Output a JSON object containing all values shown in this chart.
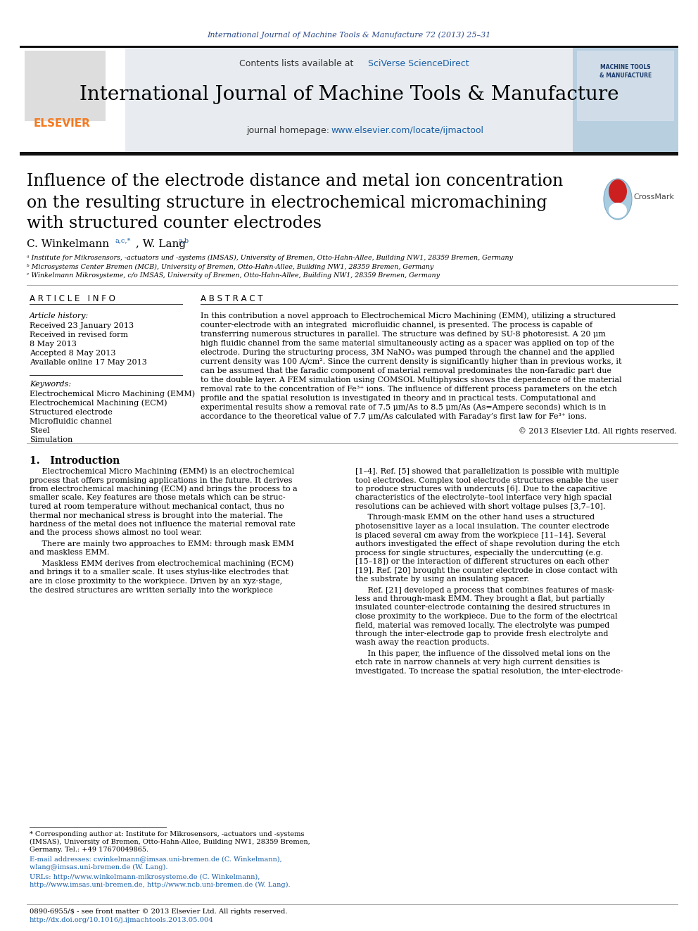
{
  "journal_ref": "International Journal of Machine Tools & Manufacture 72 (2013) 25–31",
  "journal_name": "International Journal of Machine Tools & Manufacture",
  "contents_text": "Contents lists available at ",
  "sciverse_text": "SciVerse ScienceDirect",
  "homepage_text": "journal homepage: ",
  "homepage_url": "www.elsevier.com/locate/ijmactool",
  "paper_title_line1": "Influence of the electrode distance and metal ion concentration",
  "paper_title_line2": "on the resulting structure in electrochemical micromachining",
  "paper_title_line3": "with structured counter electrodes",
  "authors_super1": "a,c,*",
  "authors_super2": "a,b",
  "affil_a": "ᵃ Institute for Mikrosensors, -actuators und -systems (IMSAS), University of Bremen, Otto-Hahn-Allee, Building NW1, 28359 Bremen, Germany",
  "affil_b": "ᵇ Microsystems Center Bremen (MCB), University of Bremen, Otto-Hahn-Allee, Building NW1, 28359 Bremen, Germany",
  "affil_c": "ᶜ Winkelmann Mikrosysteme, c/o IMSAS, University of Bremen, Otto-Hahn-Allee, Building NW1, 28359 Bremen, Germany",
  "article_info_header": "A R T I C L E   I N F O",
  "abstract_header": "A B S T R A C T",
  "article_history_label": "Article history:",
  "received_1": "Received 23 January 2013",
  "received_revised": "Received in revised form",
  "revised_date": "8 May 2013",
  "accepted": "Accepted 8 May 2013",
  "available": "Available online 17 May 2013",
  "keywords_label": "Keywords:",
  "keyword1": "Electrochemical Micro Machining (EMM)",
  "keyword2": "Electrochemical Machining (ECM)",
  "keyword3": "Structured electrode",
  "keyword4": "Microfluidic channel",
  "keyword5": "Steel",
  "keyword6": "Simulation",
  "copyright_text": "© 2013 Elsevier Ltd. All rights reserved.",
  "intro_header": "1.   Introduction",
  "footnote_line1a": "* Corresponding author at: Institute for Mikrosensors, -actuators und -systems",
  "footnote_line1b": "(IMSAS), University of Bremen, Otto-Hahn-Allee, Building NW1, 28359 Bremen,",
  "footnote_line1c": "Germany. Tel.: +49 17670049865.",
  "footnote_line2a": "E-mail addresses: cwinkelmann@imsas.uni-bremen.de (C. Winkelmann),",
  "footnote_line2b": "wlang@imsas.uni-bremen.de (W. Lang).",
  "footnote_line3a": "URLs: http://www.winkelmann-mikrosysteme.de (C. Winkelmann),",
  "footnote_line3b": "http://www.imsas.uni-bremen.de, http://www.ncb.uni-bremen.de (W. Lang).",
  "footer_issn": "0890-6955/$ - see front matter © 2013 Elsevier Ltd. All rights reserved.",
  "footer_doi": "http://dx.doi.org/10.1016/j.ijmachtools.2013.05.004",
  "journal_color": "#2b4a8b",
  "link_color": "#1a5fa8",
  "gray_bg": "#e8ecf0",
  "abstract_lines": [
    "In this contribution a novel approach to Electrochemical Micro Machining (EMM), utilizing a structured",
    "counter-electrode with an integrated  microfluidic channel, is presented. The process is capable of",
    "transferring numerous structures in parallel. The structure was defined by SU-8 photoresist. A 20 μm",
    "high fluidic channel from the same material simultaneously acting as a spacer was applied on top of the",
    "electrode. During the structuring process, 3M NaNO₃ was pumped through the channel and the applied",
    "current density was 100 A/cm². Since the current density is significantly higher than in previous works, it",
    "can be assumed that the faradic component of material removal predominates the non-faradic part due",
    "to the double layer. A FEM simulation using COMSOL Multiphysics shows the dependence of the material",
    "removal rate to the concentration of Fe³⁺ ions. The influence of different process parameters on the etch",
    "profile and the spatial resolution is investigated in theory and in practical tests. Computational and",
    "experimental results show a removal rate of 7.5 μm/As to 8.5 μm/As (As=Ampere seconds) which is in",
    "accordance to the theoretical value of 7.7 μm/As calculated with Faraday’s first law for Fe³⁺ ions."
  ],
  "intro_left_lines": [
    "     Electrochemical Micro Machining (EMM) is an electrochemical",
    "process that offers promising applications in the future. It derives",
    "from electrochemical machining (ECM) and brings the process to a",
    "smaller scale. Key features are those metals which can be struc-",
    "tured at room temperature without mechanical contact, thus no",
    "thermal nor mechanical stress is brought into the material. The",
    "hardness of the metal does not influence the material removal rate",
    "and the process shows almost no tool wear."
  ],
  "intro_left_lines2": [
    "     There are mainly two approaches to EMM: through mask EMM",
    "and maskless EMM."
  ],
  "intro_left_lines3": [
    "     Maskless EMM derives from electrochemical machining (ECM)",
    "and brings it to a smaller scale. It uses stylus-like electrodes that",
    "are in close proximity to the workpiece. Driven by an xyz-stage,",
    "the desired structures are written serially into the workpiece"
  ],
  "right_col_lines_1": [
    "[1–4]. Ref. [5] showed that parallelization is possible with multiple",
    "tool electrodes. Complex tool electrode structures enable the user",
    "to produce structures with undercuts [6]. Due to the capacitive",
    "characteristics of the electrolyte–tool interface very high spacial",
    "resolutions can be achieved with short voltage pulses [3,7–10]."
  ],
  "right_col_lines_2": [
    "     Through-mask EMM on the other hand uses a structured",
    "photosensitive layer as a local insulation. The counter electrode",
    "is placed several cm away from the workpiece [11–14]. Several",
    "authors investigated the effect of shape revolution during the etch",
    "process for single structures, especially the undercutting (e.g.",
    "[15–18]) or the interaction of different structures on each other",
    "[19]. Ref. [20] brought the counter electrode in close contact with",
    "the substrate by using an insulating spacer."
  ],
  "right_col_lines_3": [
    "     Ref. [21] developed a process that combines features of mask-",
    "less and through-mask EMM. They brought a flat, but partially",
    "insulated counter-electrode containing the desired structures in",
    "close proximity to the workpiece. Due to the form of the electrical",
    "field, material was removed locally. The electrolyte was pumped",
    "through the inter-electrode gap to provide fresh electrolyte and",
    "wash away the reaction products."
  ],
  "right_col_lines_4": [
    "     In this paper, the influence of the dissolved metal ions on the",
    "etch rate in narrow channels at very high current densities is",
    "investigated. To increase the spatial resolution, the inter-electrode-"
  ]
}
